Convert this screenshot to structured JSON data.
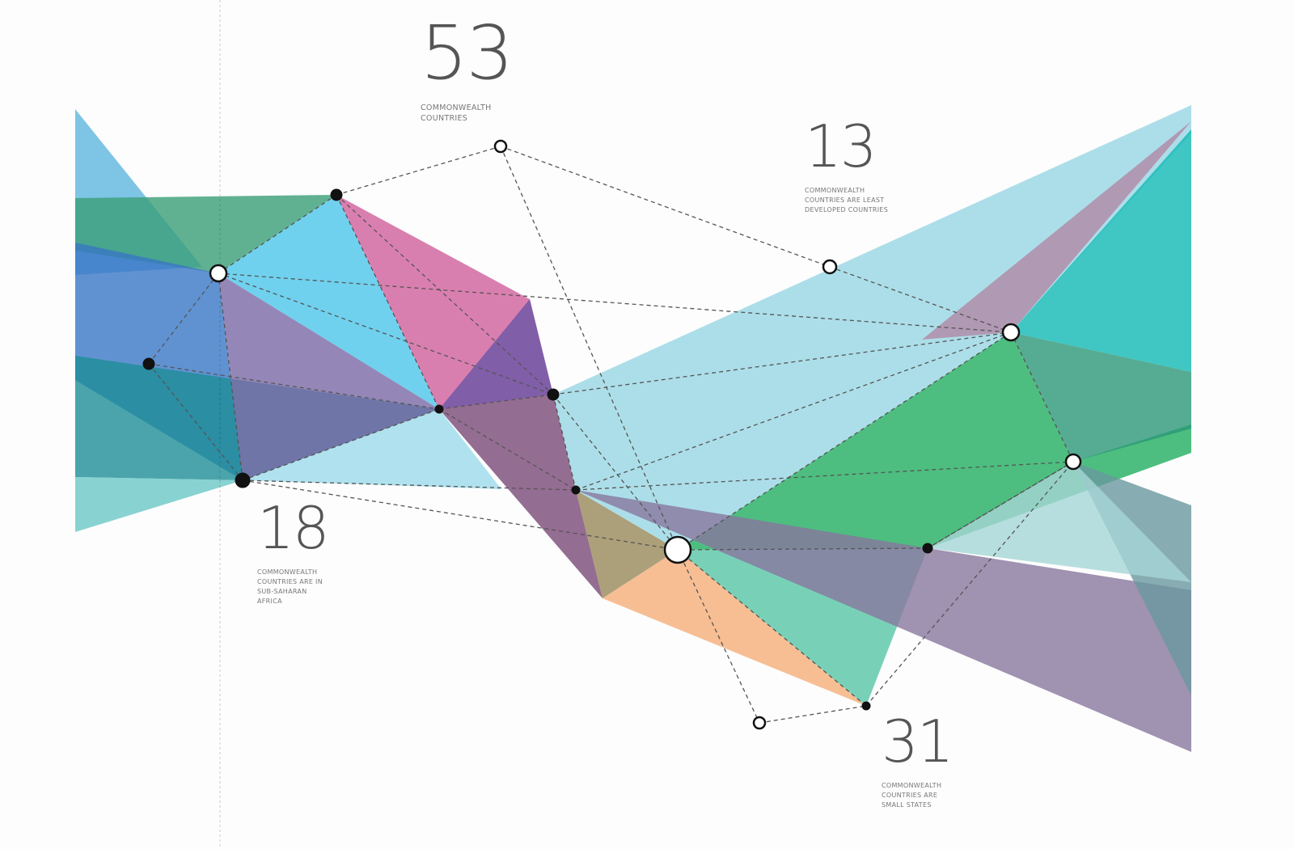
{
  "stats": [
    {
      "value": "53",
      "caption": [
        "COMMONWEALTH",
        "COUNTRIES"
      ]
    },
    {
      "value": "13",
      "caption": [
        "COMMONWEALTH",
        "COUNTRIES ARE LEAST",
        "DEVELOPED COUNTRIES"
      ]
    },
    {
      "value": "18",
      "caption": [
        "COMMONWEALTH",
        "COUNTRIES ARE IN",
        "SUB-SAHARAN",
        "AFRICA"
      ]
    },
    {
      "value": "31",
      "caption": [
        "COMMONWEALTH",
        "COUNTRIES ARE",
        "SMALL STATES"
      ]
    }
  ],
  "colors": {
    "text": "#555555",
    "dash": "#555555"
  }
}
